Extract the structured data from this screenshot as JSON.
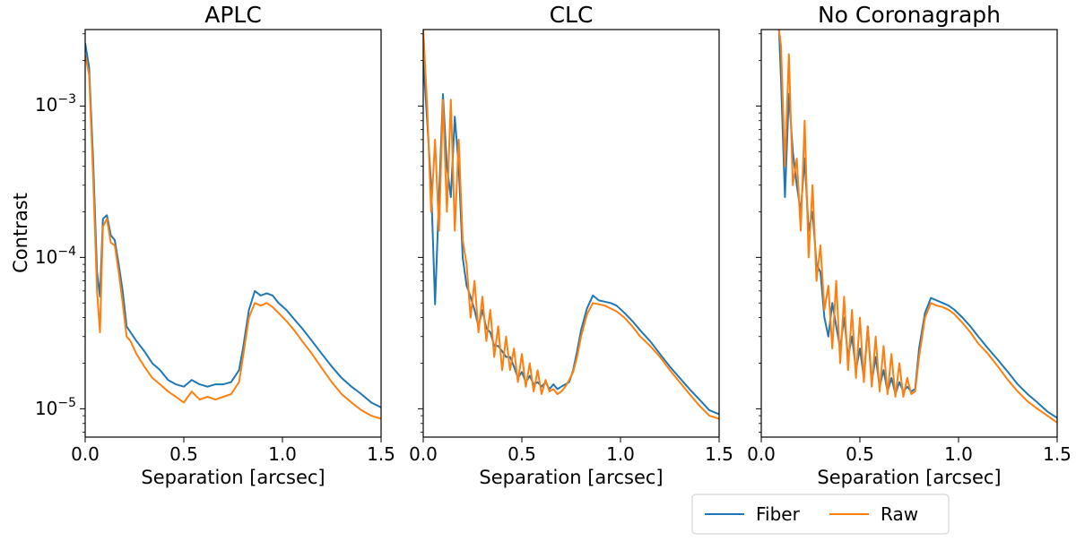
{
  "colors": {
    "fiber": "#1f77b4",
    "raw": "#ff7f0e",
    "axes": "#000000",
    "legend_border": "#cccccc"
  },
  "legend": {
    "placement": "bottom-right",
    "entries": [
      "Fiber",
      "Raw"
    ]
  },
  "chart_data": [
    {
      "type": "line",
      "title": "APLC",
      "xlabel": "Separation [arcsec]",
      "ylabel": "Contrast",
      "yscale": "log",
      "xlim": [
        0.0,
        1.5
      ],
      "ylim": [
        6.5e-06,
        0.0032
      ],
      "xticks": [
        0.0,
        0.5,
        1.0,
        1.5
      ],
      "xtick_labels": [
        "0.0",
        "0.5",
        "1.0",
        "1.5"
      ],
      "yticks": [
        0.001,
        0.0001,
        1e-05
      ],
      "ytick_base": [
        "10",
        "10",
        "10"
      ],
      "ytick_exp": [
        "−3",
        "−4",
        "−5"
      ],
      "series": [
        {
          "name": "Fiber",
          "x": [
            0.0,
            0.02,
            0.04,
            0.06,
            0.075,
            0.09,
            0.11,
            0.13,
            0.15,
            0.17,
            0.19,
            0.21,
            0.23,
            0.26,
            0.3,
            0.34,
            0.38,
            0.42,
            0.46,
            0.5,
            0.54,
            0.58,
            0.62,
            0.66,
            0.7,
            0.74,
            0.78,
            0.8,
            0.83,
            0.86,
            0.89,
            0.92,
            0.95,
            0.98,
            1.02,
            1.06,
            1.1,
            1.15,
            1.2,
            1.25,
            1.3,
            1.35,
            1.4,
            1.45,
            1.5
          ],
          "y": [
            0.0026,
            0.0018,
            0.00045,
            8e-05,
            5.5e-05,
            0.00018,
            0.00019,
            0.00014,
            0.00013,
            9e-05,
            6e-05,
            3.5e-05,
            3.2e-05,
            2.8e-05,
            2.4e-05,
            2e-05,
            1.8e-05,
            1.55e-05,
            1.45e-05,
            1.4e-05,
            1.55e-05,
            1.45e-05,
            1.4e-05,
            1.45e-05,
            1.45e-05,
            1.5e-05,
            1.8e-05,
            2.5e-05,
            4.5e-05,
            6e-05,
            5.6e-05,
            5.8e-05,
            5.6e-05,
            5e-05,
            4.5e-05,
            3.9e-05,
            3.4e-05,
            2.8e-05,
            2.3e-05,
            1.9e-05,
            1.6e-05,
            1.4e-05,
            1.25e-05,
            1.1e-05,
            1.02e-05
          ]
        },
        {
          "name": "Raw",
          "x": [
            0.0,
            0.02,
            0.04,
            0.06,
            0.075,
            0.09,
            0.11,
            0.13,
            0.15,
            0.17,
            0.19,
            0.21,
            0.23,
            0.26,
            0.3,
            0.34,
            0.38,
            0.42,
            0.46,
            0.5,
            0.54,
            0.58,
            0.62,
            0.66,
            0.7,
            0.74,
            0.78,
            0.8,
            0.83,
            0.86,
            0.89,
            0.92,
            0.95,
            0.98,
            1.02,
            1.06,
            1.1,
            1.15,
            1.2,
            1.25,
            1.3,
            1.35,
            1.4,
            1.45,
            1.5
          ],
          "y": [
            0.0022,
            0.0016,
            0.00035,
            6e-05,
            3.2e-05,
            0.00016,
            0.00018,
            0.000125,
            0.00012,
            8e-05,
            5e-05,
            3e-05,
            2.8e-05,
            2.3e-05,
            1.9e-05,
            1.6e-05,
            1.45e-05,
            1.3e-05,
            1.2e-05,
            1.1e-05,
            1.3e-05,
            1.15e-05,
            1.2e-05,
            1.15e-05,
            1.2e-05,
            1.25e-05,
            1.5e-05,
            2.2e-05,
            4e-05,
            5e-05,
            4.8e-05,
            5e-05,
            4.7e-05,
            4.3e-05,
            3.8e-05,
            3.3e-05,
            2.8e-05,
            2.3e-05,
            1.85e-05,
            1.5e-05,
            1.25e-05,
            1.1e-05,
            9.8e-06,
            9e-06,
            8.6e-06
          ]
        }
      ]
    },
    {
      "type": "line",
      "title": "CLC",
      "xlabel": "Separation [arcsec]",
      "ylabel": "",
      "yscale": "log",
      "xlim": [
        0.0,
        1.5
      ],
      "ylim": [
        6.5e-06,
        0.0032
      ],
      "xticks": [
        0.0,
        0.5,
        1.0,
        1.5
      ],
      "xtick_labels": [
        "0.0",
        "0.5",
        "1.0",
        "1.5"
      ],
      "yticks": [
        0.001,
        0.0001,
        1e-05
      ],
      "series": [
        {
          "name": "Fiber",
          "x": [
            0.0,
            0.02,
            0.04,
            0.06,
            0.08,
            0.1,
            0.12,
            0.14,
            0.16,
            0.18,
            0.2,
            0.22,
            0.24,
            0.26,
            0.28,
            0.3,
            0.32,
            0.34,
            0.36,
            0.38,
            0.4,
            0.42,
            0.44,
            0.46,
            0.48,
            0.5,
            0.52,
            0.54,
            0.56,
            0.58,
            0.6,
            0.62,
            0.64,
            0.66,
            0.68,
            0.7,
            0.72,
            0.74,
            0.76,
            0.78,
            0.8,
            0.83,
            0.86,
            0.89,
            0.92,
            0.95,
            0.98,
            1.02,
            1.06,
            1.1,
            1.15,
            1.2,
            1.25,
            1.3,
            1.35,
            1.4,
            1.45,
            1.5
          ],
          "y": [
            0.002,
            0.0008,
            0.0003,
            4.9e-05,
            0.00025,
            0.0012,
            0.0004,
            0.00025,
            0.00085,
            0.0004,
            0.0001,
            6.5e-05,
            5.5e-05,
            4.5e-05,
            3.5e-05,
            4.5e-05,
            3.4e-05,
            3.2e-05,
            2.6e-05,
            2.6e-05,
            2.4e-05,
            2.2e-05,
            2.2e-05,
            1.9e-05,
            1.6e-05,
            1.75e-05,
            1.5e-05,
            1.65e-05,
            1.45e-05,
            1.5e-05,
            1.4e-05,
            1.5e-05,
            1.35e-05,
            1.45e-05,
            1.35e-05,
            1.4e-05,
            1.45e-05,
            1.5e-05,
            1.8e-05,
            2.4e-05,
            3.3e-05,
            4.6e-05,
            5.6e-05,
            5.2e-05,
            5.1e-05,
            5e-05,
            4.8e-05,
            4.3e-05,
            3.8e-05,
            3.3e-05,
            2.8e-05,
            2.3e-05,
            1.9e-05,
            1.6e-05,
            1.35e-05,
            1.15e-05,
            9.8e-06,
            9.2e-06
          ]
        },
        {
          "name": "Raw",
          "x": [
            0.0,
            0.02,
            0.04,
            0.06,
            0.08,
            0.1,
            0.12,
            0.14,
            0.16,
            0.18,
            0.2,
            0.22,
            0.24,
            0.26,
            0.28,
            0.3,
            0.32,
            0.34,
            0.36,
            0.38,
            0.4,
            0.42,
            0.44,
            0.46,
            0.48,
            0.5,
            0.52,
            0.54,
            0.56,
            0.58,
            0.6,
            0.62,
            0.64,
            0.66,
            0.68,
            0.7,
            0.72,
            0.74,
            0.76,
            0.78,
            0.8,
            0.83,
            0.86,
            0.89,
            0.92,
            0.95,
            0.98,
            1.02,
            1.06,
            1.1,
            1.15,
            1.2,
            1.25,
            1.3,
            1.35,
            1.4,
            1.45,
            1.5
          ],
          "y": [
            0.0032,
            0.001,
            0.0002,
            0.0006,
            0.00015,
            0.0011,
            0.0002,
            0.0011,
            0.00015,
            0.0006,
            0.00013,
            9e-05,
            4e-05,
            7e-05,
            3.2e-05,
            5.5e-05,
            2.8e-05,
            4.5e-05,
            2.2e-05,
            3.5e-05,
            1.8e-05,
            3e-05,
            1.8e-05,
            2.5e-05,
            1.5e-05,
            2.3e-05,
            1.4e-05,
            2e-05,
            1.3e-05,
            1.8e-05,
            1.25e-05,
            1.55e-05,
            1.3e-05,
            1.35e-05,
            1.25e-05,
            1.3e-05,
            1.4e-05,
            1.55e-05,
            1.75e-05,
            2.2e-05,
            3e-05,
            4.2e-05,
            5e-05,
            4.9e-05,
            4.8e-05,
            4.6e-05,
            4.4e-05,
            4e-05,
            3.5e-05,
            3e-05,
            2.6e-05,
            2.2e-05,
            1.8e-05,
            1.5e-05,
            1.25e-05,
            1.05e-05,
            9e-06,
            8.6e-06
          ]
        }
      ]
    },
    {
      "type": "line",
      "title": "No Coronagraph",
      "xlabel": "Separation [arcsec]",
      "ylabel": "",
      "yscale": "log",
      "xlim": [
        0.0,
        1.5
      ],
      "ylim": [
        6.5e-06,
        0.0032
      ],
      "xticks": [
        0.0,
        0.5,
        1.0,
        1.5
      ],
      "xtick_labels": [
        "0.0",
        "0.5",
        "1.0",
        "1.5"
      ],
      "yticks": [
        0.001,
        0.0001,
        1e-05
      ],
      "series": [
        {
          "name": "Fiber",
          "x": [
            0.09,
            0.1,
            0.12,
            0.14,
            0.16,
            0.18,
            0.2,
            0.22,
            0.24,
            0.26,
            0.28,
            0.3,
            0.32,
            0.34,
            0.36,
            0.38,
            0.4,
            0.42,
            0.44,
            0.46,
            0.48,
            0.5,
            0.52,
            0.54,
            0.56,
            0.58,
            0.6,
            0.62,
            0.64,
            0.66,
            0.68,
            0.7,
            0.72,
            0.74,
            0.76,
            0.78,
            0.8,
            0.83,
            0.86,
            0.89,
            0.92,
            0.95,
            0.98,
            1.02,
            1.06,
            1.1,
            1.15,
            1.2,
            1.25,
            1.3,
            1.35,
            1.4,
            1.45,
            1.5
          ],
          "y": [
            0.0032,
            0.0015,
            0.00025,
            0.0012,
            0.0005,
            0.0003,
            0.0002,
            0.00045,
            0.00015,
            0.0002,
            9e-05,
            8e-05,
            4e-05,
            3e-05,
            5e-05,
            3.5e-05,
            2.5e-05,
            4e-05,
            2.2e-05,
            3e-05,
            1.8e-05,
            2.5e-05,
            1.6e-05,
            3.5e-05,
            1.5e-05,
            2.2e-05,
            1.4e-05,
            1.8e-05,
            1.3e-05,
            1.6e-05,
            1.25e-05,
            1.5e-05,
            1.3e-05,
            1.4e-05,
            1.3e-05,
            1.35e-05,
            2.5e-05,
            4.3e-05,
            5.4e-05,
            5.2e-05,
            5e-05,
            4.8e-05,
            4.5e-05,
            4e-05,
            3.5e-05,
            3e-05,
            2.5e-05,
            2.1e-05,
            1.75e-05,
            1.45e-05,
            1.25e-05,
            1.1e-05,
            9.6e-06,
            8.7e-06
          ]
        },
        {
          "name": "Raw",
          "x": [
            0.09,
            0.1,
            0.12,
            0.14,
            0.16,
            0.18,
            0.2,
            0.22,
            0.24,
            0.26,
            0.28,
            0.3,
            0.32,
            0.34,
            0.36,
            0.38,
            0.4,
            0.42,
            0.44,
            0.46,
            0.48,
            0.5,
            0.52,
            0.54,
            0.56,
            0.58,
            0.6,
            0.62,
            0.64,
            0.66,
            0.68,
            0.7,
            0.72,
            0.74,
            0.76,
            0.78,
            0.8,
            0.83,
            0.86,
            0.89,
            0.92,
            0.95,
            0.98,
            1.02,
            1.06,
            1.1,
            1.15,
            1.2,
            1.25,
            1.3,
            1.35,
            1.4,
            1.45,
            1.5
          ],
          "y": [
            0.0032,
            0.0025,
            0.0004,
            0.0022,
            0.0003,
            0.00045,
            0.00015,
            0.0008,
            0.0001,
            0.0003,
            7e-05,
            0.00012,
            4.5e-05,
            6.5e-05,
            2.5e-05,
            7e-05,
            2e-05,
            5.5e-05,
            1.8e-05,
            4.5e-05,
            1.6e-05,
            4e-05,
            1.5e-05,
            3.5e-05,
            1.4e-05,
            3e-05,
            1.3e-05,
            2.6e-05,
            1.25e-05,
            2.3e-05,
            1.2e-05,
            2e-05,
            1.2e-05,
            1.6e-05,
            1.25e-05,
            1.3e-05,
            2.2e-05,
            4e-05,
            5e-05,
            4.8e-05,
            4.7e-05,
            4.5e-05,
            4.2e-05,
            3.7e-05,
            3.2e-05,
            2.7e-05,
            2.3e-05,
            1.9e-05,
            1.55e-05,
            1.3e-05,
            1.12e-05,
            1e-05,
            9e-06,
            8.1e-06
          ]
        }
      ]
    }
  ]
}
